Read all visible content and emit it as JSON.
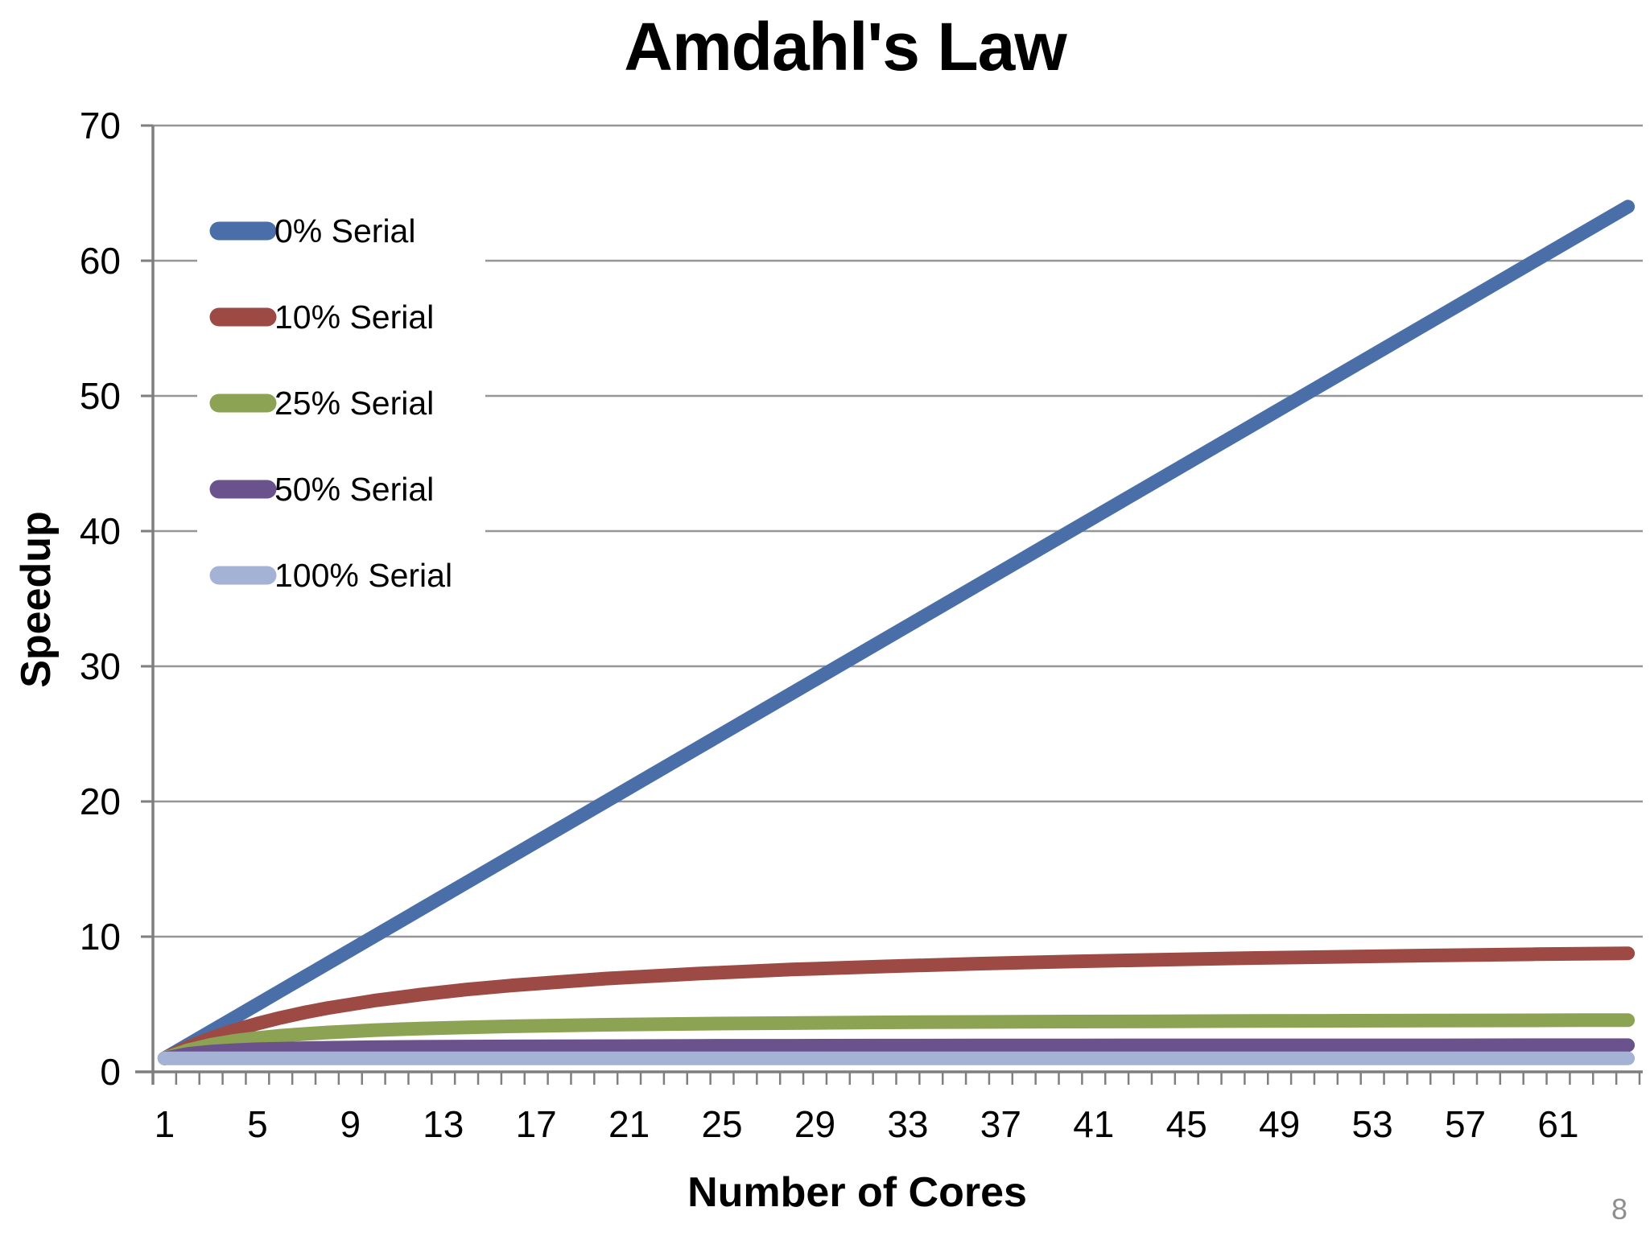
{
  "page_number": "8",
  "chart_data": {
    "type": "line",
    "title": "Amdahl's Law",
    "xlabel": "Number of Cores",
    "ylabel": "Speedup",
    "xlim": [
      1,
      64
    ],
    "ylim": [
      0,
      70
    ],
    "grid": "horizontal",
    "grid_color": "#969696",
    "axis_color": "#7F7F7F",
    "page_number_color": "#8E8E8E",
    "legend_position": "inside-top-left",
    "y_ticks": [
      0,
      10,
      20,
      30,
      40,
      50,
      60,
      70
    ],
    "x_tick_labels": [
      1,
      5,
      9,
      13,
      17,
      21,
      25,
      29,
      33,
      37,
      41,
      45,
      49,
      53,
      57,
      61
    ],
    "x": [
      1,
      2,
      3,
      4,
      5,
      6,
      7,
      8,
      10,
      12,
      14,
      16,
      20,
      24,
      28,
      32,
      36,
      40,
      44,
      48,
      52,
      56,
      60,
      62,
      64
    ],
    "series": [
      {
        "name": "0% Serial",
        "serial_fraction": 0.0,
        "color": "#4A6FA8",
        "values": [
          1,
          2,
          3,
          4,
          5,
          6,
          7,
          8,
          10,
          12,
          14,
          16,
          20,
          24,
          28,
          32,
          36,
          40,
          44,
          48,
          52,
          56,
          60,
          62,
          64
        ]
      },
      {
        "name": "10% Serial",
        "serial_fraction": 0.1,
        "color": "#9E4A44",
        "values": [
          1,
          1.82,
          2.5,
          3.08,
          3.57,
          4,
          4.38,
          4.71,
          5.26,
          5.71,
          6.09,
          6.4,
          6.9,
          7.27,
          7.57,
          7.8,
          8,
          8.16,
          8.3,
          8.42,
          8.52,
          8.62,
          8.7,
          8.73,
          8.77
        ]
      },
      {
        "name": "25% Serial",
        "serial_fraction": 0.25,
        "color": "#8CA353",
        "values": [
          1,
          1.6,
          2,
          2.29,
          2.5,
          2.67,
          2.8,
          2.91,
          3.08,
          3.2,
          3.29,
          3.37,
          3.48,
          3.56,
          3.61,
          3.66,
          3.69,
          3.72,
          3.74,
          3.76,
          3.78,
          3.8,
          3.81,
          3.82,
          3.82
        ]
      },
      {
        "name": "50% Serial",
        "serial_fraction": 0.5,
        "color": "#6A528C",
        "values": [
          1,
          1.33,
          1.5,
          1.6,
          1.67,
          1.71,
          1.75,
          1.78,
          1.82,
          1.85,
          1.87,
          1.88,
          1.9,
          1.92,
          1.93,
          1.94,
          1.95,
          1.95,
          1.96,
          1.96,
          1.96,
          1.96,
          1.97,
          1.97,
          1.97
        ]
      },
      {
        "name": "100% Serial",
        "serial_fraction": 1.0,
        "color": "#A4B2D6",
        "values": [
          1,
          1,
          1,
          1,
          1,
          1,
          1,
          1,
          1,
          1,
          1,
          1,
          1,
          1,
          1,
          1,
          1,
          1,
          1,
          1,
          1,
          1,
          1,
          1,
          1
        ]
      }
    ]
  }
}
